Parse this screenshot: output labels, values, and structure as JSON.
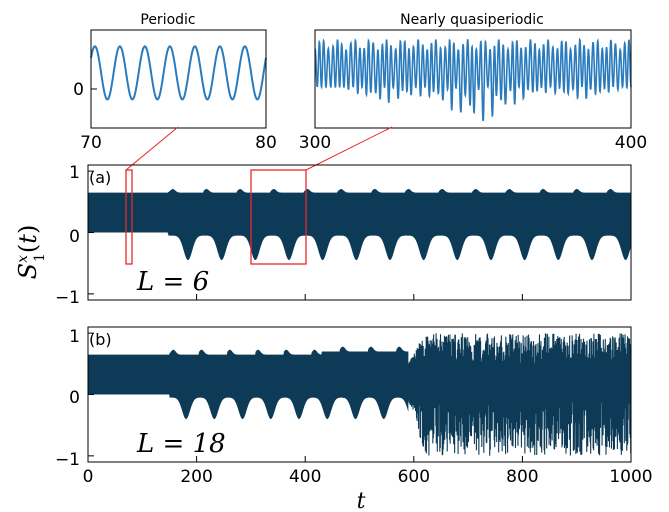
{
  "chart_data": [
    {
      "type": "line",
      "panel": "inset",
      "title": "Periodic",
      "xlim": [
        70,
        80
      ],
      "x_ticks": [
        "70",
        "80"
      ],
      "y_ticks": [
        "0"
      ],
      "ylim": [
        -0.35,
        0.85
      ],
      "oscillations_in_window": 7,
      "y_min": 0.0,
      "y_max": 0.65,
      "color": "#2a7bbd"
    },
    {
      "type": "line",
      "panel": "inset",
      "title": "Nearly quasiperiodic",
      "xlim": [
        300,
        400
      ],
      "x_ticks": [
        "300",
        "400"
      ],
      "y_ticks": [],
      "ylim": [
        -0.7,
        0.85
      ],
      "color": "#2a7bbd"
    },
    {
      "type": "area",
      "panel": "(a)",
      "annotation": "L = 6",
      "xlim": [
        0,
        1000
      ],
      "ylim": [
        -1.1,
        1.1
      ],
      "y_ticks": [
        "1",
        "0",
        "−1"
      ],
      "upper_envelope": [
        [
          0,
          0.65
        ],
        [
          140,
          0.65
        ],
        [
          150,
          0.7
        ],
        [
          1000,
          0.65
        ]
      ],
      "lower_envelope": [
        [
          0,
          0.0
        ],
        [
          140,
          0.0
        ],
        [
          160,
          -0.15
        ],
        [
          1000,
          -0.15
        ]
      ],
      "dip_period": 62,
      "zoom_boxes": [
        {
          "x": [
            70,
            80
          ],
          "y": [
            -0.5,
            1.0
          ]
        },
        {
          "x": [
            300,
            400
          ],
          "y": [
            -0.5,
            1.0
          ]
        }
      ],
      "color": "#0d3b57",
      "highlight_color": "#e8292c"
    },
    {
      "type": "area",
      "panel": "(b)",
      "annotation": "L = 18",
      "xlim": [
        0,
        1000
      ],
      "ylim": [
        -1.1,
        1.1
      ],
      "x_ticks": [
        "0",
        "200",
        "400",
        "600",
        "800",
        "1000"
      ],
      "y_ticks": [
        "1",
        "0",
        "−1"
      ],
      "xlabel": "t",
      "ylabel": "S_1^x(t)",
      "transition_t": 590,
      "color": "#0d3b57"
    }
  ]
}
